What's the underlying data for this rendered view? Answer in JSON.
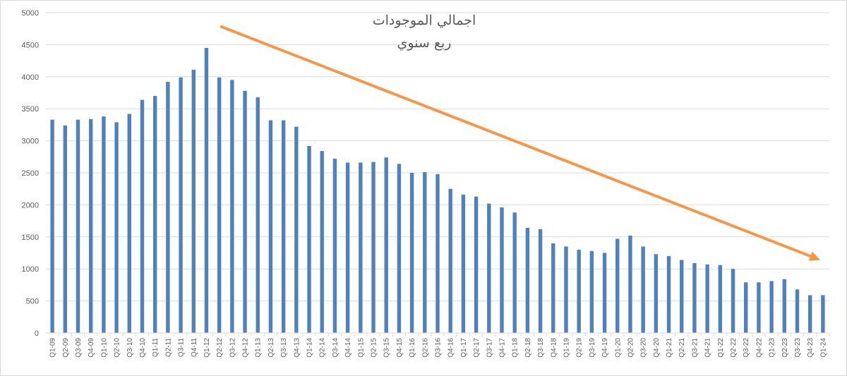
{
  "chart_data": {
    "type": "bar",
    "title": "اجمالي الموجودات",
    "subtitle": "ربع سنوي",
    "xlabel": "",
    "ylabel": "",
    "ylim": [
      0,
      5000
    ],
    "yticks": [
      0,
      500,
      1000,
      1500,
      2000,
      2500,
      3000,
      3500,
      4000,
      4500,
      5000
    ],
    "grid": true,
    "legend": "none",
    "trendline": {
      "style": "arrow",
      "direction": "down"
    },
    "colors": {
      "bar": "#4f81bd",
      "trend": "#f79646",
      "grid": "#d9d9d9",
      "text": "#595959"
    },
    "categories": [
      "Q1-09",
      "Q2-09",
      "Q3-09",
      "Q4-09",
      "Q1-10",
      "Q2-10",
      "Q3-10",
      "Q4-10",
      "Q1-11",
      "Q2-11",
      "Q3-11",
      "Q4-11",
      "Q1-12",
      "Q2-12",
      "Q3-12",
      "Q4-12",
      "Q1-13",
      "Q2-13",
      "Q3-13",
      "Q4-13",
      "Q1-14",
      "Q2-14",
      "Q3-14",
      "Q4-14",
      "Q1-15",
      "Q2-15",
      "Q3-15",
      "Q4-15",
      "Q1-16",
      "Q2-16",
      "Q3-16",
      "Q4-16",
      "Q1-17",
      "Q2-17",
      "Q3-17",
      "Q4-17",
      "Q1-18",
      "Q2-18",
      "Q3-18",
      "Q4-18",
      "Q1-19",
      "Q2-19",
      "Q3-19",
      "Q4-19",
      "Q1-20",
      "Q2-20",
      "Q3-20",
      "Q4-20",
      "Q1-21",
      "Q2-21",
      "Q3-21",
      "Q4-21",
      "Q1-22",
      "Q2-22",
      "Q3-22",
      "Q4-22",
      "Q1-23",
      "Q2-23",
      "Q3-23",
      "Q4-23",
      "Q1-24"
    ],
    "values": [
      3330,
      3240,
      3330,
      3340,
      3380,
      3290,
      3420,
      3640,
      3700,
      3920,
      3990,
      4110,
      4450,
      3990,
      3950,
      3780,
      3680,
      3320,
      3320,
      3220,
      2920,
      2840,
      2720,
      2660,
      2660,
      2670,
      2740,
      2640,
      2500,
      2510,
      2480,
      2250,
      2160,
      2130,
      2020,
      1960,
      1880,
      1640,
      1620,
      1400,
      1350,
      1300,
      1280,
      1250,
      1470,
      1520,
      1350,
      1230,
      1200,
      1140,
      1090,
      1070,
      1060,
      1000,
      790,
      790,
      810,
      840,
      680,
      590,
      590
    ]
  }
}
